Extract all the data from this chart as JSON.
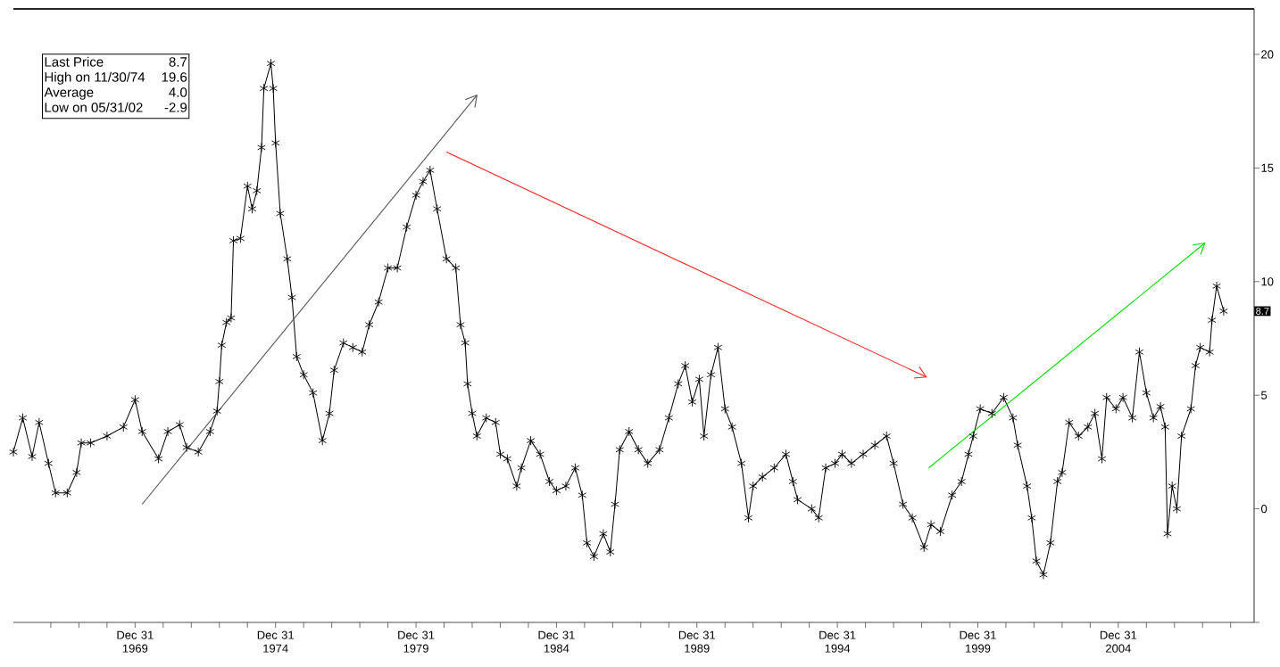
{
  "chart_data": {
    "type": "line",
    "marker": "cross",
    "x": [
      "1965-09",
      "1966-01",
      "1966-05",
      "1966-08",
      "1966-12",
      "1967-03",
      "1967-08",
      "1967-12",
      "1968-02",
      "1968-06",
      "1969-01",
      "1969-08",
      "1970-01",
      "1970-04",
      "1970-11",
      "1971-03",
      "1971-08",
      "1971-11",
      "1972-04",
      "1972-09",
      "1972-12",
      "1973-01",
      "1973-02",
      "1973-04",
      "1973-06",
      "1973-07",
      "1973-10",
      "1974-01",
      "1974-03",
      "1974-05",
      "1974-07",
      "1974-08",
      "1974-11",
      "1974-12",
      "1975-01",
      "1975-03",
      "1975-06",
      "1975-08",
      "1975-10",
      "1976-01",
      "1976-05",
      "1976-09",
      "1976-12",
      "1977-02",
      "1977-06",
      "1977-10",
      "1978-02",
      "1978-05",
      "1978-09",
      "1979-01",
      "1979-05",
      "1979-09",
      "1980-01",
      "1980-04",
      "1980-07",
      "1980-10",
      "1981-02",
      "1981-06",
      "1981-08",
      "1981-10",
      "1981-11",
      "1982-01",
      "1982-03",
      "1982-07",
      "1982-11",
      "1983-01",
      "1983-04",
      "1983-08",
      "1983-10",
      "1984-02",
      "1984-06",
      "1984-10",
      "1985-01",
      "1985-05",
      "1985-09",
      "1985-12",
      "1986-02",
      "1986-05",
      "1986-09",
      "1986-12",
      "1987-02",
      "1987-04",
      "1987-08",
      "1987-12",
      "1988-04",
      "1988-09",
      "1989-01",
      "1989-05",
      "1989-08",
      "1989-11",
      "1990-02",
      "1990-04",
      "1990-07",
      "1990-10",
      "1991-01",
      "1991-04",
      "1991-08",
      "1991-11",
      "1992-01",
      "1992-05",
      "1992-10",
      "1993-03",
      "1993-06",
      "1993-08",
      "1994-02",
      "1994-05",
      "1994-08",
      "1994-12",
      "1995-03",
      "1995-07",
      "1995-12",
      "1996-05",
      "1996-10",
      "1997-01",
      "1997-05",
      "1997-09",
      "1998-02",
      "1998-05",
      "1998-09",
      "1999-02",
      "1999-06",
      "1999-09",
      "1999-11",
      "2000-02",
      "2000-07",
      "2000-12",
      "2001-04",
      "2001-06",
      "2001-10",
      "2001-12",
      "2002-02",
      "2002-05",
      "2002-08",
      "2002-11",
      "2003-01",
      "2003-04",
      "2003-08",
      "2003-12",
      "2004-03",
      "2004-06",
      "2004-08",
      "2004-12",
      "2005-03",
      "2005-07",
      "2005-10",
      "2006-01",
      "2006-04",
      "2006-07",
      "2006-09",
      "2006-10",
      "2006-12",
      "2007-02",
      "2007-04",
      "2007-08",
      "2007-10",
      "2007-12",
      "2008-04",
      "2008-05",
      "2008-07",
      "2008-10"
    ],
    "series": [
      {
        "color": "#000000",
        "values": [
          2.5,
          4.0,
          2.3,
          3.8,
          2.0,
          0.7,
          0.7,
          1.6,
          2.9,
          2.9,
          3.2,
          3.6,
          4.8,
          3.4,
          2.2,
          3.4,
          3.7,
          2.7,
          2.5,
          3.4,
          4.3,
          5.6,
          7.2,
          8.2,
          8.4,
          11.8,
          11.9,
          14.2,
          13.2,
          14.0,
          15.9,
          18.5,
          19.6,
          18.5,
          16.1,
          13.0,
          11.0,
          9.3,
          6.7,
          5.9,
          5.1,
          3.0,
          4.2,
          6.1,
          7.3,
          7.1,
          6.9,
          8.1,
          9.1,
          10.6,
          10.6,
          12.4,
          13.8,
          14.4,
          14.9,
          13.2,
          11.0,
          10.6,
          8.1,
          7.3,
          5.5,
          4.2,
          3.2,
          4.0,
          3.8,
          2.4,
          2.2,
          1.0,
          1.8,
          3.0,
          2.4,
          1.2,
          0.8,
          1.0,
          1.8,
          0.6,
          -1.5,
          -2.1,
          -1.1,
          -1.9,
          0.2,
          2.6,
          3.4,
          2.6,
          2.0,
          2.6,
          4.0,
          5.5,
          6.3,
          4.7,
          5.7,
          3.2,
          5.9,
          7.1,
          4.4,
          3.6,
          2.0,
          -0.4,
          1.0,
          1.4,
          1.8,
          2.4,
          1.2,
          0.4,
          0.0,
          -0.4,
          1.8,
          2.0,
          2.4,
          2.0,
          2.4,
          2.8,
          3.2,
          2.0,
          0.2,
          -0.4,
          -1.7,
          -0.7,
          -1.0,
          0.6,
          1.2,
          2.4,
          3.2,
          4.4,
          4.2,
          4.9,
          4.0,
          2.8,
          1.0,
          -0.4,
          -2.3,
          -2.9,
          -1.5,
          1.2,
          1.6,
          3.8,
          3.2,
          3.6,
          4.2,
          2.2,
          4.9,
          4.4,
          4.9,
          4.0,
          6.9,
          5.1,
          4.0,
          4.5,
          3.6,
          -1.1,
          1.0,
          0.0,
          3.2,
          4.4,
          6.3,
          7.1,
          6.9,
          8.3,
          9.8,
          8.7
        ]
      },
      {
        "color": "#555555",
        "marker": "none",
        "x": [
          "1970-04",
          "1982-03"
        ],
        "values": [
          0.2,
          18.2
        ]
      },
      {
        "color": "#ff2020",
        "marker": "none",
        "x": [
          "1981-02",
          "1998-03"
        ],
        "values": [
          15.7,
          5.8
        ]
      },
      {
        "color": "#00e000",
        "marker": "none",
        "x": [
          "1998-04",
          "2008-02"
        ],
        "values": [
          1.8,
          11.7
        ]
      }
    ],
    "xlim": [
      "1965-09",
      "2009-11"
    ],
    "xticks": [
      {
        "value": "1966-12-31",
        "label": null
      },
      {
        "value": "1967-12-31",
        "label": null
      },
      {
        "value": "1968-12-31",
        "label": null
      },
      {
        "value": "1969-12-31",
        "label": "Dec 31 1969"
      },
      {
        "value": "1970-12-31",
        "label": null
      },
      {
        "value": "1971-12-31",
        "label": null
      },
      {
        "value": "1972-12-31",
        "label": null
      },
      {
        "value": "1973-12-31",
        "label": null
      },
      {
        "value": "1974-12-31",
        "label": "Dec 31 1974"
      },
      {
        "value": "1975-12-31",
        "label": null
      },
      {
        "value": "1976-12-31",
        "label": null
      },
      {
        "value": "1977-12-31",
        "label": null
      },
      {
        "value": "1978-12-31",
        "label": null
      },
      {
        "value": "1979-12-31",
        "label": "Dec 31 1979"
      },
      {
        "value": "1980-12-31",
        "label": null
      },
      {
        "value": "1981-12-31",
        "label": null
      },
      {
        "value": "1982-12-31",
        "label": null
      },
      {
        "value": "1983-12-31",
        "label": null
      },
      {
        "value": "1984-12-31",
        "label": "Dec 31 1984"
      },
      {
        "value": "1985-12-31",
        "label": null
      },
      {
        "value": "1986-12-31",
        "label": null
      },
      {
        "value": "1987-12-31",
        "label": null
      },
      {
        "value": "1988-12-31",
        "label": null
      },
      {
        "value": "1989-12-31",
        "label": "Dec 31 1989"
      },
      {
        "value": "1990-12-31",
        "label": null
      },
      {
        "value": "1991-12-31",
        "label": null
      },
      {
        "value": "1992-12-31",
        "label": null
      },
      {
        "value": "1993-12-31",
        "label": null
      },
      {
        "value": "1994-12-31",
        "label": "Dec 31 1994"
      },
      {
        "value": "1995-12-31",
        "label": null
      },
      {
        "value": "1996-12-31",
        "label": null
      },
      {
        "value": "1997-12-31",
        "label": null
      },
      {
        "value": "1998-12-31",
        "label": null
      },
      {
        "value": "1999-12-31",
        "label": "Dec 31 1999"
      },
      {
        "value": "2000-12-31",
        "label": null
      },
      {
        "value": "2001-12-31",
        "label": null
      },
      {
        "value": "2002-12-31",
        "label": null
      },
      {
        "value": "2003-12-31",
        "label": null
      },
      {
        "value": "2004-12-31",
        "label": "Dec 31 2004"
      },
      {
        "value": "2005-12-31",
        "label": null
      },
      {
        "value": "2006-12-31",
        "label": null
      },
      {
        "value": "2007-12-31",
        "label": null
      },
      {
        "value": "2008-12-31",
        "label": null
      }
    ],
    "ylim": [
      -5,
      22
    ],
    "yticks": [
      {
        "value": -5,
        "label": null
      },
      0,
      5,
      10,
      15,
      20
    ],
    "annotations": [
      "Last Price",
      "8.7",
      "High on 11/30/74",
      "19.6",
      "Average",
      "4.0",
      "Low on 05/31/02",
      "-2.9",
      {
        "text": "8.7",
        "y": 8.7
      }
    ]
  }
}
